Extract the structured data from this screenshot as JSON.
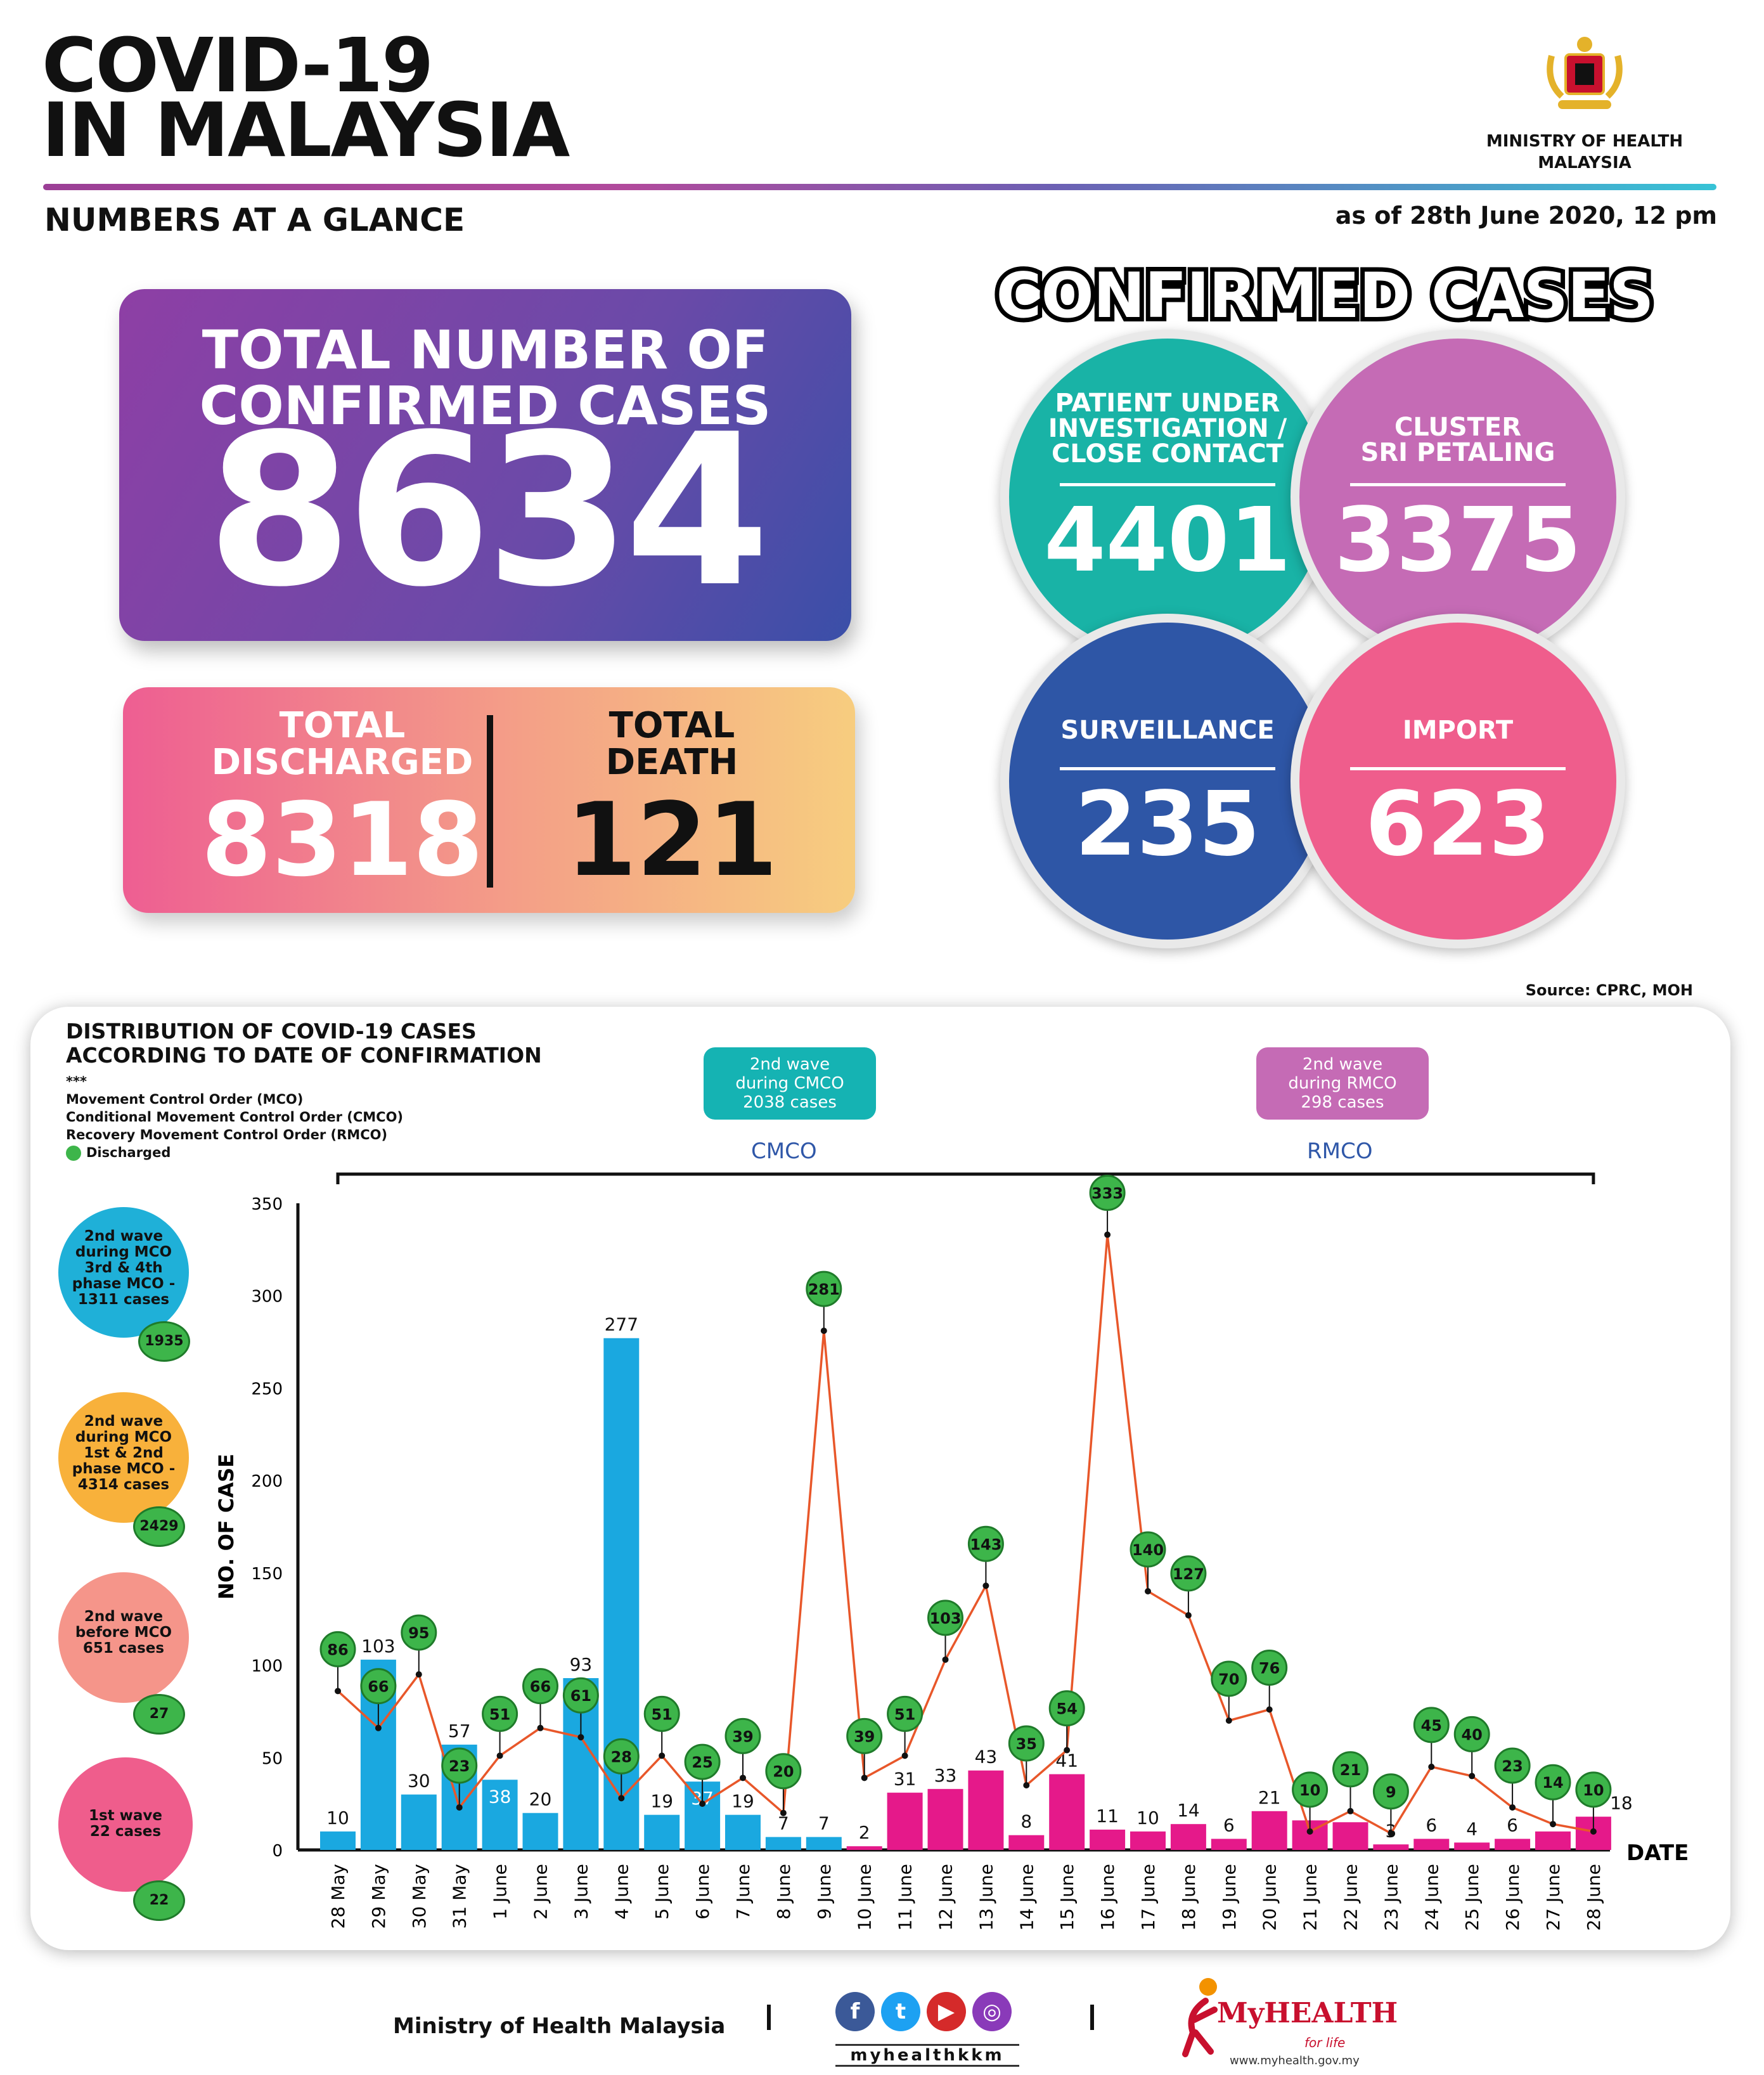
{
  "header": {
    "title_line1": "COVID-19",
    "title_line2": "IN MALAYSIA",
    "subtitle": "NUMBERS AT A GLANCE",
    "as_of": "as of 28th June 2020, 12 pm",
    "ministry_line1": "MINISTRY OF HEALTH",
    "ministry_line2": "MALAYSIA"
  },
  "totals": {
    "confirmed_label1": "TOTAL NUMBER OF",
    "confirmed_label2": "CONFIRMED CASES",
    "confirmed": "8634",
    "discharged_label1": "TOTAL",
    "discharged_label2": "DISCHARGED",
    "discharged": "8318",
    "death_label1": "TOTAL",
    "death_label2": "DEATH",
    "death": "121"
  },
  "confirmed_cases": {
    "title": "CONFIRMED CASES",
    "pui": {
      "label1": "PATIENT UNDER",
      "label2": "INVESTIGATION /",
      "label3": "CLOSE CONTACT",
      "value": "4401",
      "color": "#19b3a6"
    },
    "cluster": {
      "label1": "CLUSTER",
      "label2": "SRI PETALING",
      "value": "3375",
      "color": "#c56bb5"
    },
    "surveillance": {
      "label": "SURVEILLANCE",
      "value": "235",
      "color": "#2e56a6"
    },
    "import": {
      "label": "IMPORT",
      "value": "623",
      "color": "#ef5d8c"
    }
  },
  "source": "Source: CPRC, MOH",
  "chart_panel": {
    "title1": "DISTRIBUTION OF COVID-19 CASES",
    "title2": "ACCORDING TO DATE OF CONFIRMATION",
    "stars": "***",
    "legend1": "Movement Control Order (MCO)",
    "legend2": "Conditional Movement Control Order (CMCO)",
    "legend3": "Recovery Movement Control Order (RMCO)",
    "legend4": "Discharged",
    "cmco_tag1": "2nd wave",
    "cmco_tag2": "during CMCO",
    "cmco_tag3": "2038 cases",
    "rmco_tag1": "2nd wave",
    "rmco_tag2": "during RMCO",
    "rmco_tag3": "298 cases",
    "cmco_label": "CMCO",
    "rmco_label": "RMCO",
    "waves": [
      {
        "l1": "2nd wave",
        "l2": "during MCO",
        "l3": "3rd & 4th",
        "l4": "phase MCO -",
        "l5": "1311 cases",
        "discharged": "1935",
        "color": "#1fb0d8"
      },
      {
        "l1": "2nd wave",
        "l2": "during MCO",
        "l3": "1st & 2nd",
        "l4": "phase MCO -",
        "l5": "4314 cases",
        "discharged": "2429",
        "color": "#f8b13b"
      },
      {
        "l1": "2nd wave",
        "l2": "before MCO",
        "l3": "651 cases",
        "l4": "",
        "l5": "",
        "discharged": "27",
        "color": "#f5958a"
      },
      {
        "l1": "1st wave",
        "l2": "22 cases",
        "l3": "",
        "l4": "",
        "l5": "",
        "discharged": "22",
        "color": "#ef5d8c"
      }
    ]
  },
  "chart_data": {
    "type": "bar",
    "ylabel": "NO. OF CASE",
    "xlabel": "DATE",
    "ylim": [
      0,
      350
    ],
    "yticks": [
      0,
      50,
      100,
      150,
      200,
      250,
      300,
      350
    ],
    "categories": [
      "28 May",
      "29 May",
      "30 May",
      "31 May",
      "1 June",
      "2 June",
      "3 June",
      "4 June",
      "5 June",
      "6 June",
      "7 June",
      "8 June",
      "9 June",
      "10 June",
      "11 June",
      "12 June",
      "13 June",
      "14 June",
      "15 June",
      "16 June",
      "17 June",
      "18 June",
      "19 June",
      "20 June",
      "21 June",
      "22 June",
      "23 June",
      "24 June",
      "25 June",
      "26 June",
      "27 June",
      "28 June"
    ],
    "series": [
      {
        "name": "",
        "values": [
          10,
          103,
          30,
          57,
          38,
          20,
          93,
          277,
          19,
          37,
          19,
          7,
          7,
          2,
          31,
          33,
          43,
          8,
          41,
          11,
          10,
          14,
          6,
          21,
          16,
          15,
          3,
          6,
          4,
          6,
          10,
          18
        ]
      },
      {
        "name": "Discharged",
        "values": [
          86,
          66,
          95,
          23,
          51,
          66,
          61,
          28,
          51,
          25,
          39,
          20,
          281,
          39,
          51,
          103,
          143,
          35,
          54,
          333,
          140,
          127,
          70,
          76,
          10,
          21,
          9,
          45,
          40,
          23,
          14,
          10
        ]
      }
    ],
    "colors": {
      "mco": "#1aa8e0",
      "cmco_rmco": "#e5198a",
      "line": "#e8572a",
      "discharged": "#3db54a"
    }
  },
  "footer": {
    "ministry": "Ministry of Health Malaysia",
    "handle": "myhealthkkm",
    "brand": "MyHEALTH",
    "brand_sub": "for life",
    "url": "www.myhealth.gov.my"
  }
}
